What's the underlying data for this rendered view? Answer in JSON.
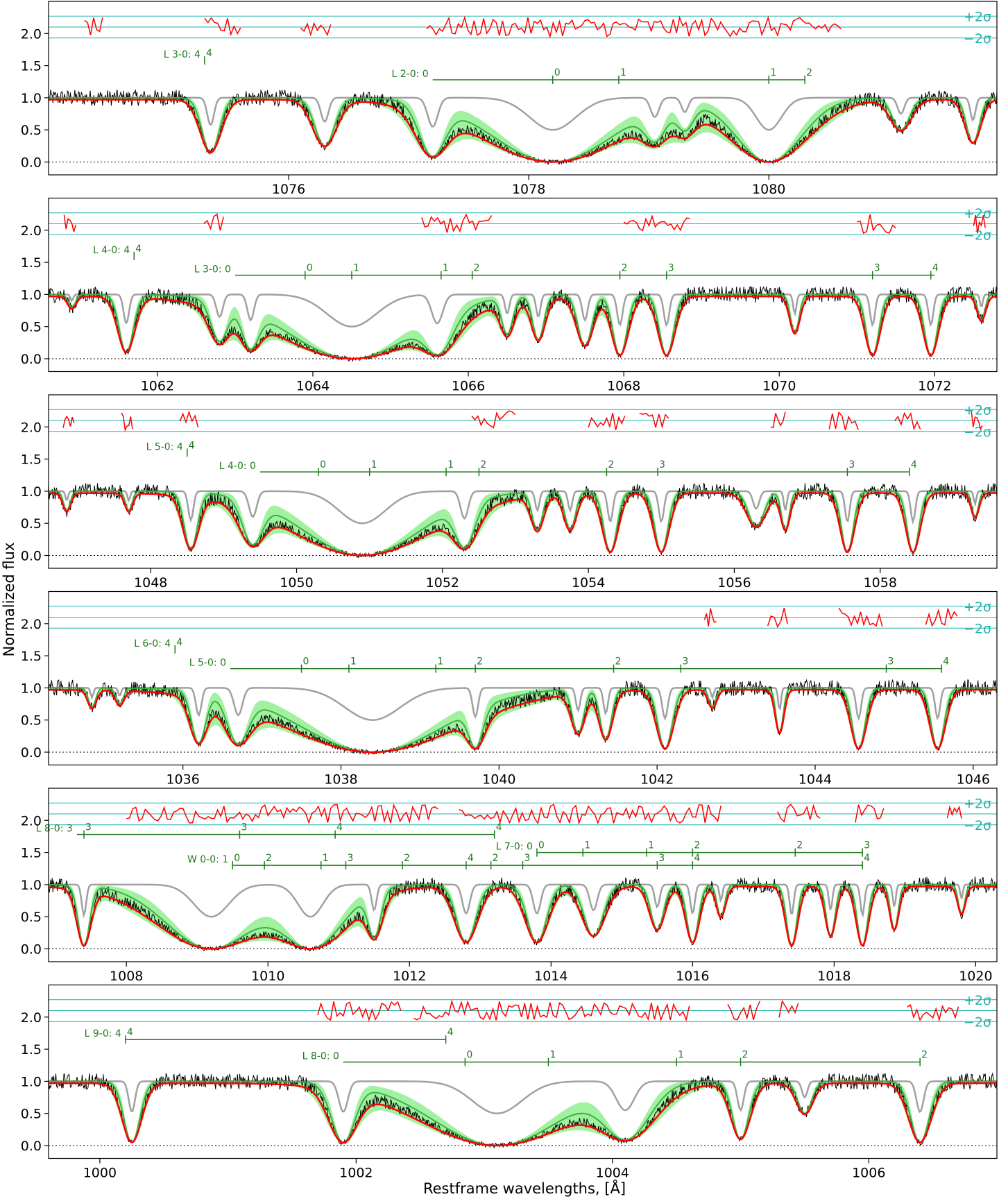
{
  "figure": {
    "ylabel": "Normalized flux",
    "xlabel": "Restframe wavelengths, [Å]",
    "sigma_labels": [
      "+2σ",
      "−2σ"
    ]
  },
  "colors": {
    "data": "#000000",
    "model_total": "#ff0000",
    "model_components": "#3cb043",
    "band_light": "#90ee90",
    "band_dark": "#5a9a5a",
    "unabsorbed": "#a0a0a0",
    "residuals": "#ff0000",
    "sigma_lines": "#20b2aa",
    "line_markers": "#1f7a1f"
  },
  "chart_data": [
    {
      "type": "line",
      "panel": 1,
      "xlim": [
        1074.0,
        1081.9
      ],
      "ylim": [
        -0.2,
        2.5
      ],
      "xticks": [
        1076,
        1078,
        1080
      ],
      "yticks": [
        "0.0",
        "0.5",
        "1.0",
        "1.5",
        "2.0"
      ],
      "absorption_lines": [
        {
          "x": 1075.35,
          "depth": 0.85,
          "width": 0.08
        },
        {
          "x": 1076.3,
          "depth": 0.75,
          "width": 0.09
        },
        {
          "x": 1077.2,
          "depth": 0.9,
          "width": 0.12
        },
        {
          "x": 1078.2,
          "depth": 1.0,
          "width": 0.55
        },
        {
          "x": 1079.05,
          "depth": 0.6,
          "width": 0.1
        },
        {
          "x": 1079.3,
          "depth": 0.45,
          "width": 0.08
        },
        {
          "x": 1080.0,
          "depth": 1.0,
          "width": 0.3
        },
        {
          "x": 1081.1,
          "depth": 0.5,
          "width": 0.08
        },
        {
          "x": 1081.7,
          "depth": 0.7,
          "width": 0.06
        }
      ],
      "line_series": [
        {
          "label": "L 3-0: 4",
          "y": 1.58,
          "start": 1075.3,
          "end": 1075.3,
          "ticks": [
            {
              "x": 1075.3,
              "label": "4"
            }
          ]
        },
        {
          "label": "L 2-0: 0",
          "y": 1.28,
          "start": 1077.2,
          "end": 1080.3,
          "ticks": [
            {
              "x": 1078.2,
              "label": "0"
            },
            {
              "x": 1078.75,
              "label": "1"
            },
            {
              "x": 1080.0,
              "label": "1"
            },
            {
              "x": 1080.3,
              "label": "2"
            }
          ]
        }
      ],
      "residual_segments": [
        [
          1074.3,
          1074.45
        ],
        [
          1075.3,
          1075.6
        ],
        [
          1076.1,
          1076.35
        ],
        [
          1077.15,
          1080.6
        ]
      ]
    },
    {
      "type": "line",
      "panel": 2,
      "xlim": [
        1060.6,
        1072.8
      ],
      "ylim": [
        -0.2,
        2.5
      ],
      "xticks": [
        1062,
        1064,
        1066,
        1068,
        1070,
        1072
      ],
      "yticks": [
        "0.0",
        "0.5",
        "1.0",
        "1.5",
        "2.0"
      ],
      "absorption_lines": [
        {
          "x": 1060.9,
          "depth": 0.2,
          "width": 0.05
        },
        {
          "x": 1061.6,
          "depth": 0.9,
          "width": 0.1
        },
        {
          "x": 1062.8,
          "depth": 0.7,
          "width": 0.12
        },
        {
          "x": 1063.2,
          "depth": 0.8,
          "width": 0.12
        },
        {
          "x": 1064.5,
          "depth": 1.0,
          "width": 0.9
        },
        {
          "x": 1065.6,
          "depth": 0.9,
          "width": 0.2
        },
        {
          "x": 1066.5,
          "depth": 0.6,
          "width": 0.08
        },
        {
          "x": 1066.9,
          "depth": 0.7,
          "width": 0.08
        },
        {
          "x": 1067.5,
          "depth": 0.8,
          "width": 0.1
        },
        {
          "x": 1067.95,
          "depth": 0.95,
          "width": 0.1
        },
        {
          "x": 1068.55,
          "depth": 0.95,
          "width": 0.1
        },
        {
          "x": 1070.2,
          "depth": 0.6,
          "width": 0.06
        },
        {
          "x": 1071.2,
          "depth": 0.95,
          "width": 0.09
        },
        {
          "x": 1071.95,
          "depth": 0.95,
          "width": 0.09
        },
        {
          "x": 1072.6,
          "depth": 0.4,
          "width": 0.05
        }
      ],
      "line_series": [
        {
          "label": "L 4-0: 4",
          "y": 1.6,
          "start": 1061.7,
          "end": 1061.7,
          "ticks": [
            {
              "x": 1061.7,
              "label": "4"
            }
          ]
        },
        {
          "label": "L 3-0: 0",
          "y": 1.3,
          "start": 1063.0,
          "end": 1072.0,
          "ticks": [
            {
              "x": 1063.9,
              "label": "0"
            },
            {
              "x": 1064.5,
              "label": "1"
            },
            {
              "x": 1065.65,
              "label": "1"
            },
            {
              "x": 1066.05,
              "label": "2"
            },
            {
              "x": 1067.95,
              "label": "2"
            },
            {
              "x": 1068.55,
              "label": "3"
            },
            {
              "x": 1071.2,
              "label": "3"
            },
            {
              "x": 1071.95,
              "label": "4"
            }
          ]
        }
      ],
      "residual_segments": [
        [
          1060.8,
          1060.95
        ],
        [
          1062.6,
          1062.85
        ],
        [
          1065.4,
          1066.3
        ],
        [
          1068.0,
          1068.85
        ],
        [
          1071.0,
          1071.5
        ],
        [
          1072.5,
          1072.65
        ]
      ]
    },
    {
      "type": "line",
      "panel": 3,
      "xlim": [
        1046.6,
        1059.6
      ],
      "ylim": [
        -0.2,
        2.5
      ],
      "xticks": [
        1048,
        1050,
        1052,
        1054,
        1056,
        1058
      ],
      "yticks": [
        "0.0",
        "0.5",
        "1.0",
        "1.5",
        "2.0"
      ],
      "absorption_lines": [
        {
          "x": 1046.85,
          "depth": 0.3,
          "width": 0.05
        },
        {
          "x": 1047.7,
          "depth": 0.3,
          "width": 0.05
        },
        {
          "x": 1048.55,
          "depth": 0.9,
          "width": 0.1
        },
        {
          "x": 1049.4,
          "depth": 0.8,
          "width": 0.15
        },
        {
          "x": 1050.9,
          "depth": 1.0,
          "width": 0.9
        },
        {
          "x": 1052.3,
          "depth": 0.85,
          "width": 0.15
        },
        {
          "x": 1053.3,
          "depth": 0.6,
          "width": 0.08
        },
        {
          "x": 1053.75,
          "depth": 0.6,
          "width": 0.08
        },
        {
          "x": 1054.3,
          "depth": 0.95,
          "width": 0.1
        },
        {
          "x": 1055.0,
          "depth": 0.95,
          "width": 0.1
        },
        {
          "x": 1056.3,
          "depth": 0.55,
          "width": 0.12
        },
        {
          "x": 1056.7,
          "depth": 0.6,
          "width": 0.06
        },
        {
          "x": 1057.55,
          "depth": 0.95,
          "width": 0.09
        },
        {
          "x": 1058.45,
          "depth": 0.95,
          "width": 0.09
        },
        {
          "x": 1059.3,
          "depth": 0.4,
          "width": 0.05
        }
      ],
      "line_series": [
        {
          "label": "L 5-0: 4",
          "y": 1.6,
          "start": 1048.5,
          "end": 1048.5,
          "ticks": [
            {
              "x": 1048.5,
              "label": "4"
            }
          ]
        },
        {
          "label": "L 4-0: 0",
          "y": 1.3,
          "start": 1049.5,
          "end": 1058.4,
          "ticks": [
            {
              "x": 1050.3,
              "label": "0"
            },
            {
              "x": 1051.0,
              "label": "1"
            },
            {
              "x": 1052.05,
              "label": "1"
            },
            {
              "x": 1052.5,
              "label": "2"
            },
            {
              "x": 1054.25,
              "label": "2"
            },
            {
              "x": 1054.95,
              "label": "3"
            },
            {
              "x": 1057.55,
              "label": "3"
            },
            {
              "x": 1058.4,
              "label": "4"
            }
          ]
        }
      ],
      "residual_segments": [
        [
          1046.8,
          1046.95
        ],
        [
          1047.6,
          1047.75
        ],
        [
          1048.4,
          1048.65
        ],
        [
          1052.4,
          1053.0
        ],
        [
          1054.0,
          1054.5
        ],
        [
          1054.7,
          1055.1
        ],
        [
          1056.5,
          1056.7
        ],
        [
          1057.3,
          1057.7
        ],
        [
          1058.2,
          1058.55
        ],
        [
          1059.25,
          1059.4
        ]
      ]
    },
    {
      "type": "line",
      "panel": 4,
      "xlim": [
        1034.3,
        1046.3
      ],
      "ylim": [
        -0.2,
        2.5
      ],
      "xticks": [
        1036,
        1038,
        1040,
        1042,
        1044,
        1046
      ],
      "yticks": [
        "0.0",
        "0.5",
        "1.0",
        "1.5",
        "2.0"
      ],
      "absorption_lines": [
        {
          "x": 1034.85,
          "depth": 0.3,
          "width": 0.05
        },
        {
          "x": 1035.2,
          "depth": 0.25,
          "width": 0.05
        },
        {
          "x": 1036.2,
          "depth": 0.85,
          "width": 0.1
        },
        {
          "x": 1036.7,
          "depth": 0.85,
          "width": 0.15
        },
        {
          "x": 1038.4,
          "depth": 1.0,
          "width": 1.0
        },
        {
          "x": 1039.7,
          "depth": 0.9,
          "width": 0.1
        },
        {
          "x": 1041.0,
          "depth": 0.7,
          "width": 0.08
        },
        {
          "x": 1041.35,
          "depth": 0.8,
          "width": 0.08
        },
        {
          "x": 1042.1,
          "depth": 0.95,
          "width": 0.1
        },
        {
          "x": 1042.7,
          "depth": 0.3,
          "width": 0.05
        },
        {
          "x": 1043.55,
          "depth": 0.7,
          "width": 0.05
        },
        {
          "x": 1044.55,
          "depth": 0.95,
          "width": 0.09
        },
        {
          "x": 1045.55,
          "depth": 0.95,
          "width": 0.09
        }
      ],
      "line_series": [
        {
          "label": "L 6-0: 4",
          "y": 1.6,
          "start": 1035.9,
          "end": 1035.9,
          "ticks": [
            {
              "x": 1035.9,
              "label": "4"
            }
          ]
        },
        {
          "label": "L 5-0: 0",
          "y": 1.3,
          "start": 1036.6,
          "end": 1045.6,
          "ticks": [
            {
              "x": 1037.5,
              "label": "0"
            },
            {
              "x": 1038.1,
              "label": "1"
            },
            {
              "x": 1039.2,
              "label": "1"
            },
            {
              "x": 1039.7,
              "label": "2"
            },
            {
              "x": 1041.45,
              "label": "2"
            },
            {
              "x": 1042.3,
              "label": "3"
            },
            {
              "x": 1044.9,
              "label": "3"
            },
            {
              "x": 1045.6,
              "label": "4"
            }
          ]
        }
      ],
      "residual_segments": [
        [
          1042.6,
          1042.75
        ],
        [
          1043.4,
          1043.65
        ],
        [
          1044.3,
          1044.85
        ],
        [
          1045.4,
          1045.8
        ]
      ]
    },
    {
      "type": "line",
      "panel": 5,
      "xlim": [
        1006.9,
        1020.3
      ],
      "ylim": [
        -0.2,
        2.5
      ],
      "xticks": [
        1008,
        1010,
        1012,
        1014,
        1016,
        1018,
        1020
      ],
      "yticks": [
        "0.0",
        "0.5",
        "1.0",
        "1.5",
        "2.0"
      ],
      "absorption_lines": [
        {
          "x": 1007.4,
          "depth": 0.95,
          "width": 0.09
        },
        {
          "x": 1009.2,
          "depth": 1.0,
          "width": 0.7
        },
        {
          "x": 1010.6,
          "depth": 1.0,
          "width": 0.5
        },
        {
          "x": 1011.5,
          "depth": 0.8,
          "width": 0.1
        },
        {
          "x": 1012.8,
          "depth": 0.9,
          "width": 0.15
        },
        {
          "x": 1013.8,
          "depth": 0.9,
          "width": 0.15
        },
        {
          "x": 1014.6,
          "depth": 0.8,
          "width": 0.15
        },
        {
          "x": 1015.5,
          "depth": 0.7,
          "width": 0.1
        },
        {
          "x": 1016.0,
          "depth": 0.9,
          "width": 0.09
        },
        {
          "x": 1016.4,
          "depth": 0.5,
          "width": 0.06
        },
        {
          "x": 1017.4,
          "depth": 0.95,
          "width": 0.08
        },
        {
          "x": 1017.95,
          "depth": 0.8,
          "width": 0.07
        },
        {
          "x": 1018.4,
          "depth": 0.95,
          "width": 0.08
        },
        {
          "x": 1018.85,
          "depth": 0.7,
          "width": 0.06
        },
        {
          "x": 1019.8,
          "depth": 0.45,
          "width": 0.05
        }
      ],
      "line_series": [
        {
          "label": "L 8-0: 3",
          "y": 1.78,
          "start": 1007.3,
          "end": 1013.2,
          "ticks": [
            {
              "x": 1007.4,
              "label": "3"
            },
            {
              "x": 1009.6,
              "label": "3"
            },
            {
              "x": 1010.95,
              "label": "4"
            },
            {
              "x": 1013.2,
              "label": "4"
            }
          ]
        },
        {
          "label": "L 7-0: 0",
          "y": 1.5,
          "start": 1013.8,
          "end": 1018.4,
          "ticks": [
            {
              "x": 1013.8,
              "label": "0"
            },
            {
              "x": 1014.45,
              "label": "1"
            },
            {
              "x": 1015.35,
              "label": "1"
            },
            {
              "x": 1016.0,
              "label": "2"
            },
            {
              "x": 1017.45,
              "label": "2"
            },
            {
              "x": 1018.4,
              "label": "3"
            }
          ]
        },
        {
          "label": "W 0-0: 1",
          "y": 1.3,
          "start": 1009.5,
          "end": 1018.4,
          "ticks": [
            {
              "x": 1009.5,
              "label": "0"
            },
            {
              "x": 1009.95,
              "label": "2"
            },
            {
              "x": 1010.75,
              "label": "1"
            },
            {
              "x": 1011.1,
              "label": "3"
            },
            {
              "x": 1011.9,
              "label": "2"
            },
            {
              "x": 1012.8,
              "label": "4"
            },
            {
              "x": 1013.15,
              "label": "2"
            },
            {
              "x": 1013.6,
              "label": "3"
            },
            {
              "x": 1015.5,
              "label": "3"
            },
            {
              "x": 1016.0,
              "label": "4"
            },
            {
              "x": 1018.4,
              "label": "4"
            }
          ]
        }
      ],
      "residual_segments": [
        [
          1008.0,
          1012.4
        ],
        [
          1012.7,
          1016.4
        ],
        [
          1017.2,
          1017.8
        ],
        [
          1018.3,
          1018.7
        ],
        [
          1019.6,
          1019.8
        ]
      ]
    },
    {
      "type": "line",
      "panel": 6,
      "xlim": [
        999.6,
        1007.0
      ],
      "ylim": [
        -0.2,
        2.5
      ],
      "xticks": [
        1000,
        1002,
        1004,
        1006
      ],
      "yticks": [
        "0.0",
        "0.5",
        "1.0",
        "1.5",
        "2.0"
      ],
      "absorption_lines": [
        {
          "x": 1000.25,
          "depth": 0.95,
          "width": 0.07
        },
        {
          "x": 1001.9,
          "depth": 0.95,
          "width": 0.1
        },
        {
          "x": 1003.1,
          "depth": 1.0,
          "width": 0.55
        },
        {
          "x": 1004.1,
          "depth": 0.9,
          "width": 0.2
        },
        {
          "x": 1005.0,
          "depth": 0.9,
          "width": 0.07
        },
        {
          "x": 1005.5,
          "depth": 0.5,
          "width": 0.06
        },
        {
          "x": 1006.4,
          "depth": 0.95,
          "width": 0.08
        }
      ],
      "line_series": [
        {
          "label": "L 9-0: 4",
          "y": 1.65,
          "start": 1000.2,
          "end": 1002.7,
          "ticks": [
            {
              "x": 1000.2,
              "label": "4"
            },
            {
              "x": 1002.7,
              "label": "4"
            }
          ]
        },
        {
          "label": "L 8-0: 0",
          "y": 1.3,
          "start": 1001.9,
          "end": 1006.4,
          "ticks": [
            {
              "x": 1002.85,
              "label": "0"
            },
            {
              "x": 1003.5,
              "label": "1"
            },
            {
              "x": 1004.5,
              "label": "1"
            },
            {
              "x": 1005.0,
              "label": "2"
            },
            {
              "x": 1006.4,
              "label": "2"
            }
          ]
        }
      ],
      "residual_segments": [
        [
          1001.7,
          1002.35
        ],
        [
          1002.45,
          1004.6
        ],
        [
          1004.9,
          1005.15
        ],
        [
          1005.3,
          1005.45
        ],
        [
          1006.3,
          1006.7
        ]
      ]
    }
  ]
}
